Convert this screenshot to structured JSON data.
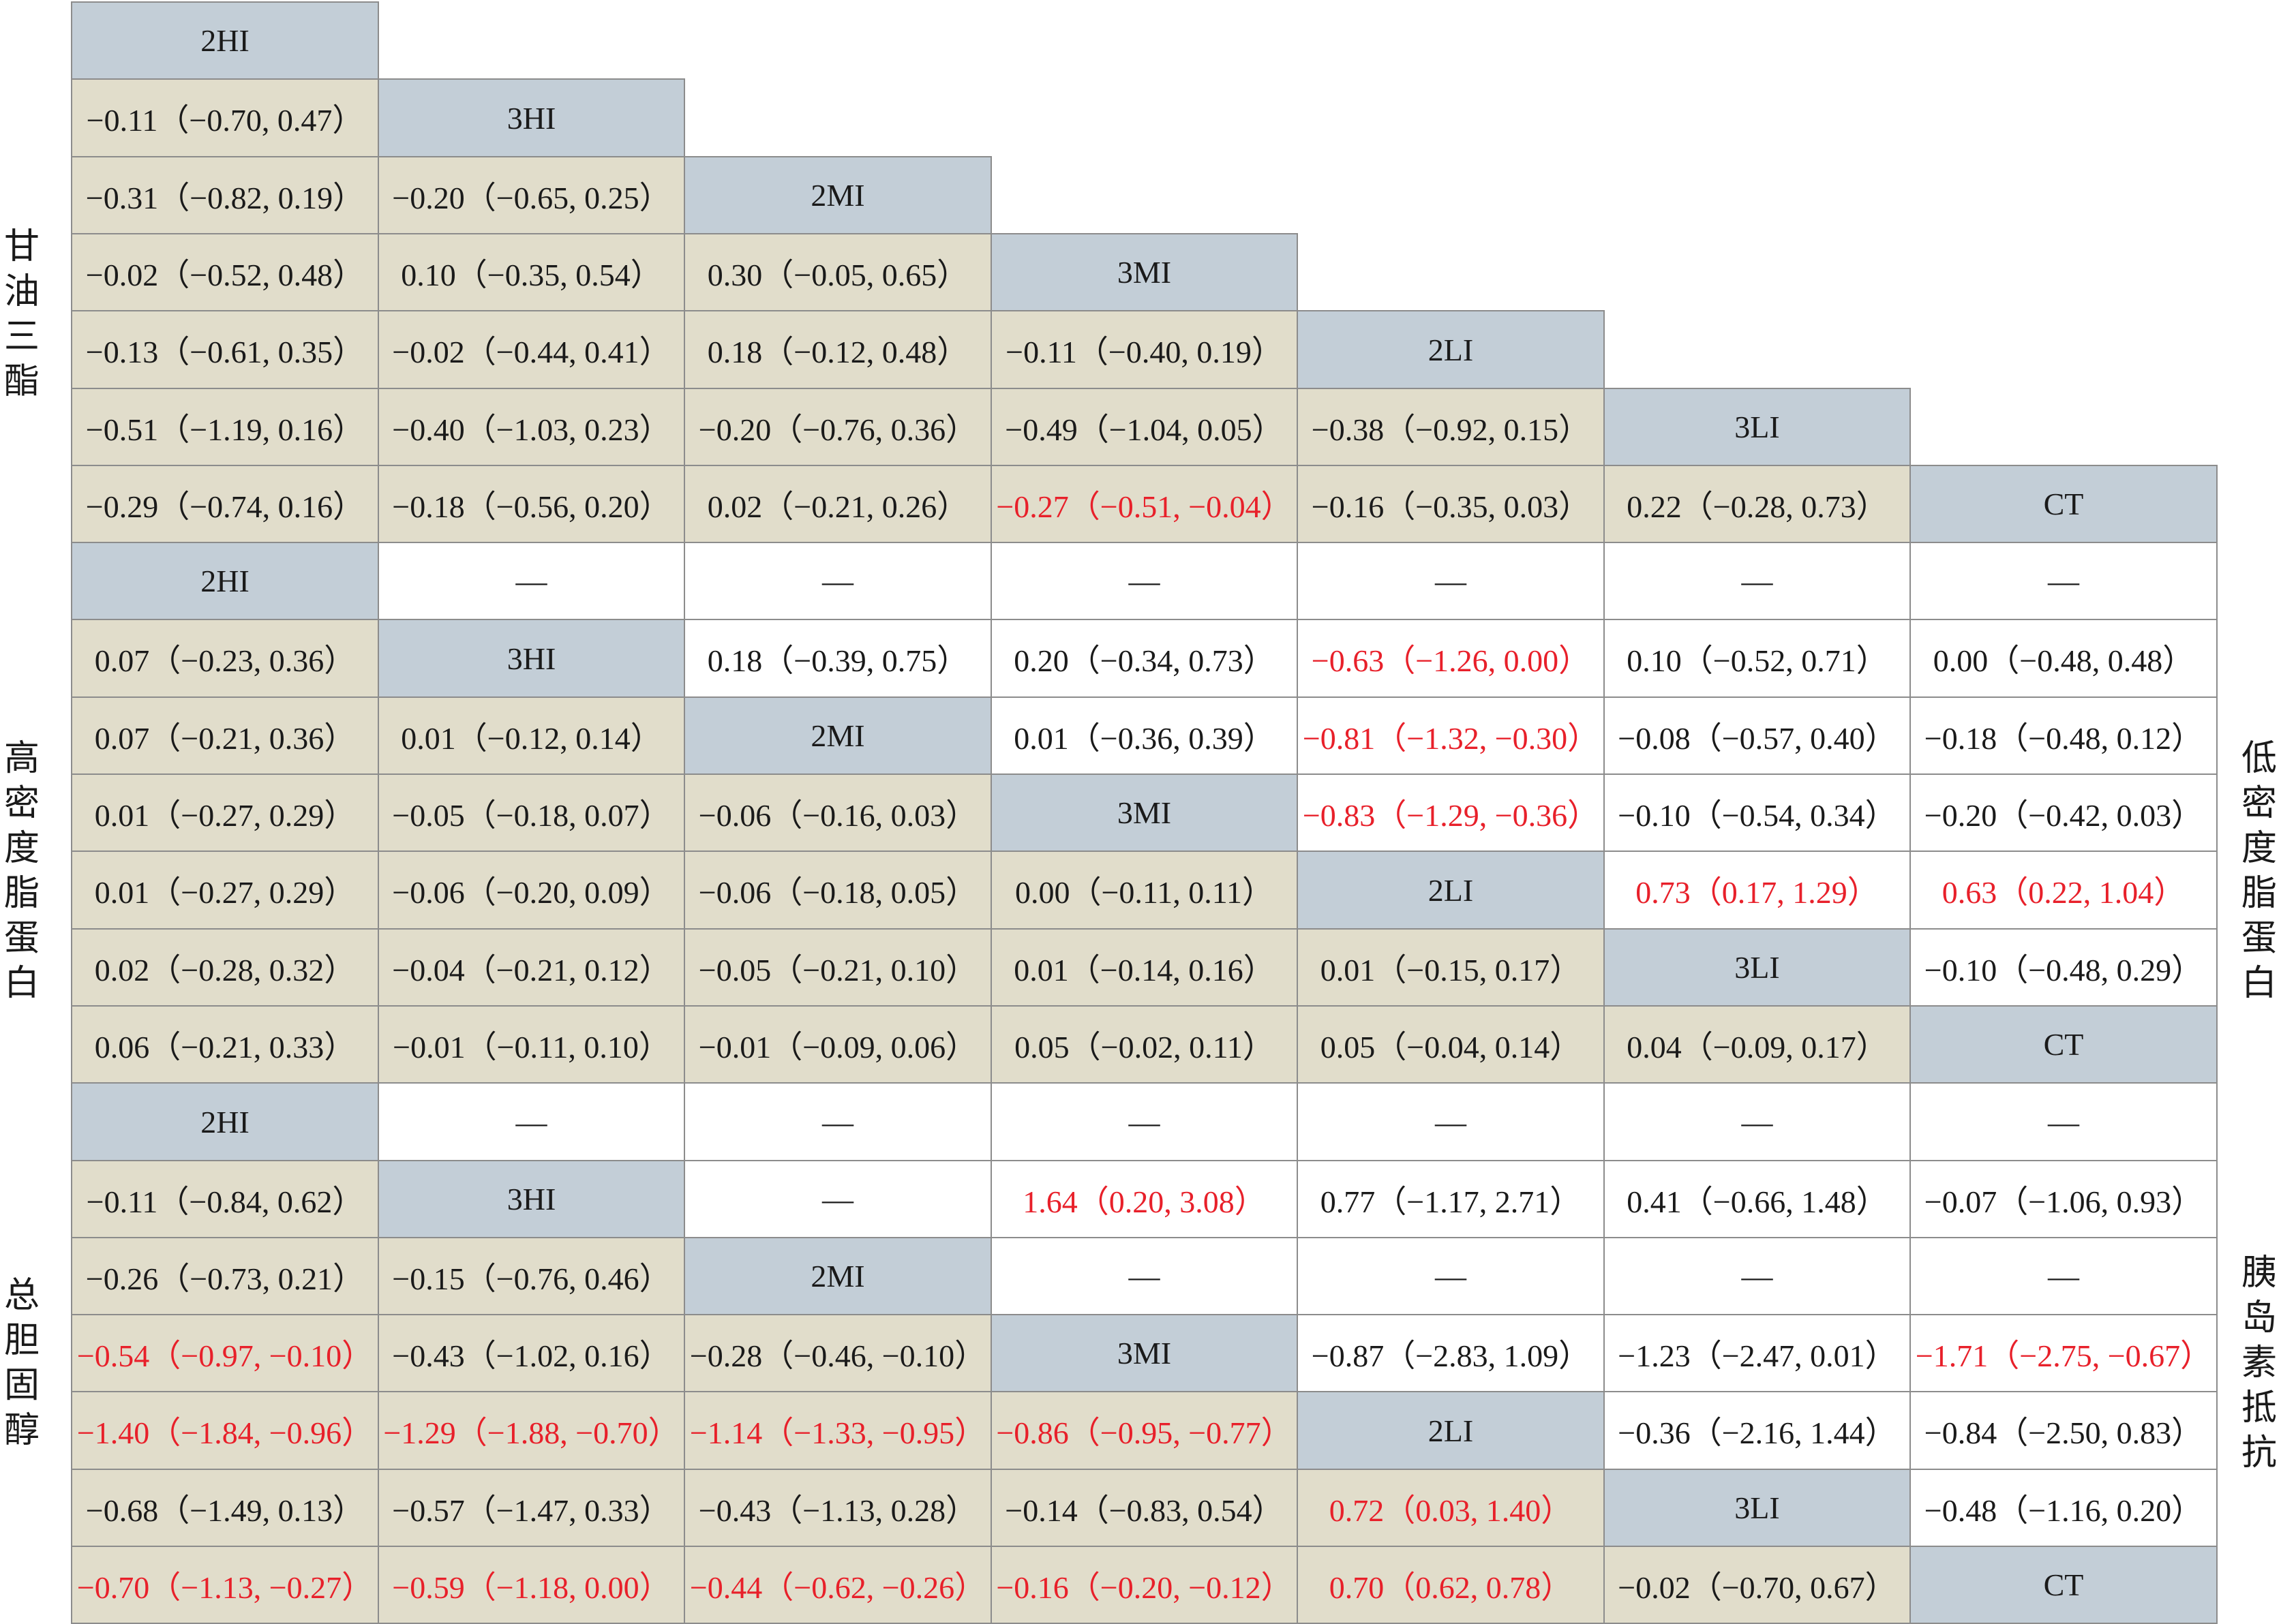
{
  "colors": {
    "label_fill": "#c3ced7",
    "lower_fill": "#e1ddcb",
    "upper_fill": "#ffffff",
    "border": "#8c8c8c",
    "text": "#1a1a1a",
    "significant_text": "#e8202a"
  },
  "side_labels": {
    "triglyceride": "甘油三酯",
    "hdl": "高密度脂蛋白",
    "ldl": "低密度脂蛋白",
    "total_cholesterol": "总胆固醇",
    "insulin_resistance": "胰岛素抵抗"
  },
  "blocks": [
    {
      "id": "triglyceride",
      "rows": [
        [
          {
            "t": "2HI",
            "k": "label"
          }
        ],
        [
          {
            "t": "−0.11（−0.70, 0.47）"
          },
          {
            "t": "3HI",
            "k": "label"
          }
        ],
        [
          {
            "t": "−0.31（−0.82, 0.19）"
          },
          {
            "t": "−0.20（−0.65, 0.25）"
          },
          {
            "t": "2MI",
            "k": "label"
          }
        ],
        [
          {
            "t": "−0.02（−0.52, 0.48）"
          },
          {
            "t": "0.10（−0.35, 0.54）"
          },
          {
            "t": "0.30（−0.05, 0.65）"
          },
          {
            "t": "3MI",
            "k": "label"
          }
        ],
        [
          {
            "t": "−0.13（−0.61, 0.35）"
          },
          {
            "t": "−0.02（−0.44, 0.41）"
          },
          {
            "t": "0.18（−0.12, 0.48）"
          },
          {
            "t": "−0.11（−0.40, 0.19）"
          },
          {
            "t": "2LI",
            "k": "label"
          }
        ],
        [
          {
            "t": "−0.51（−1.19, 0.16）"
          },
          {
            "t": "−0.40（−1.03, 0.23）"
          },
          {
            "t": "−0.20（−0.76, 0.36）"
          },
          {
            "t": "−0.49（−1.04, 0.05）"
          },
          {
            "t": "−0.38（−0.92, 0.15）"
          },
          {
            "t": "3LI",
            "k": "label"
          }
        ],
        [
          {
            "t": "−0.29（−0.74, 0.16）"
          },
          {
            "t": "−0.18（−0.56, 0.20）"
          },
          {
            "t": "0.02（−0.21, 0.26）"
          },
          {
            "t": "−0.27（−0.51, −0.04）",
            "s": true
          },
          {
            "t": "−0.16（−0.35, 0.03）"
          },
          {
            "t": "0.22（−0.28, 0.73）"
          },
          {
            "t": "CT",
            "k": "label"
          }
        ]
      ]
    },
    {
      "id": "hdl_ldl",
      "rows": [
        [
          {
            "t": "2HI",
            "k": "label"
          },
          {
            "t": "—"
          },
          {
            "t": "—"
          },
          {
            "t": "—"
          },
          {
            "t": "—"
          },
          {
            "t": "—"
          },
          {
            "t": "—"
          }
        ],
        [
          {
            "t": "0.07（−0.23, 0.36）"
          },
          {
            "t": "3HI",
            "k": "label"
          },
          {
            "t": "0.18（−0.39, 0.75）"
          },
          {
            "t": "0.20（−0.34, 0.73）"
          },
          {
            "t": "−0.63（−1.26, 0.00）",
            "s": true
          },
          {
            "t": "0.10（−0.52, 0.71）"
          },
          {
            "t": "0.00（−0.48, 0.48）"
          }
        ],
        [
          {
            "t": "0.07（−0.21, 0.36）"
          },
          {
            "t": "0.01（−0.12, 0.14）"
          },
          {
            "t": "2MI",
            "k": "label"
          },
          {
            "t": "0.01（−0.36, 0.39）"
          },
          {
            "t": "−0.81（−1.32, −0.30）",
            "s": true
          },
          {
            "t": "−0.08（−0.57, 0.40）"
          },
          {
            "t": "−0.18（−0.48, 0.12）"
          }
        ],
        [
          {
            "t": "0.01（−0.27, 0.29）"
          },
          {
            "t": "−0.05（−0.18, 0.07）"
          },
          {
            "t": "−0.06（−0.16, 0.03）"
          },
          {
            "t": "3MI",
            "k": "label"
          },
          {
            "t": "−0.83（−1.29, −0.36）",
            "s": true
          },
          {
            "t": "−0.10（−0.54, 0.34）"
          },
          {
            "t": "−0.20（−0.42, 0.03）"
          }
        ],
        [
          {
            "t": "0.01（−0.27, 0.29）"
          },
          {
            "t": "−0.06（−0.20, 0.09）"
          },
          {
            "t": "−0.06（−0.18, 0.05）"
          },
          {
            "t": "0.00（−0.11, 0.11）"
          },
          {
            "t": "2LI",
            "k": "label"
          },
          {
            "t": "0.73（0.17, 1.29）",
            "s": true
          },
          {
            "t": "0.63（0.22, 1.04）",
            "s": true
          }
        ],
        [
          {
            "t": "0.02（−0.28, 0.32）"
          },
          {
            "t": "−0.04（−0.21, 0.12）"
          },
          {
            "t": "−0.05（−0.21, 0.10）"
          },
          {
            "t": "0.01（−0.14, 0.16）"
          },
          {
            "t": "0.01（−0.15, 0.17）"
          },
          {
            "t": "3LI",
            "k": "label"
          },
          {
            "t": "−0.10（−0.48, 0.29）"
          }
        ],
        [
          {
            "t": "0.06（−0.21, 0.33）"
          },
          {
            "t": "−0.01（−0.11, 0.10）"
          },
          {
            "t": "−0.01（−0.09, 0.06）"
          },
          {
            "t": "0.05（−0.02, 0.11）"
          },
          {
            "t": "0.05（−0.04, 0.14）"
          },
          {
            "t": "0.04（−0.09, 0.17）"
          },
          {
            "t": "CT",
            "k": "label"
          }
        ]
      ]
    },
    {
      "id": "tc_ir",
      "rows": [
        [
          {
            "t": "2HI",
            "k": "label"
          },
          {
            "t": "—"
          },
          {
            "t": "—"
          },
          {
            "t": "—"
          },
          {
            "t": "—"
          },
          {
            "t": "—"
          },
          {
            "t": "—"
          }
        ],
        [
          {
            "t": "−0.11（−0.84, 0.62）"
          },
          {
            "t": "3HI",
            "k": "label"
          },
          {
            "t": "—"
          },
          {
            "t": "1.64（0.20, 3.08）",
            "s": true
          },
          {
            "t": "0.77（−1.17, 2.71）"
          },
          {
            "t": "0.41（−0.66, 1.48）"
          },
          {
            "t": "−0.07（−1.06, 0.93）"
          }
        ],
        [
          {
            "t": "−0.26（−0.73, 0.21）"
          },
          {
            "t": "−0.15（−0.76, 0.46）"
          },
          {
            "t": "2MI",
            "k": "label"
          },
          {
            "t": "—"
          },
          {
            "t": "—"
          },
          {
            "t": "—"
          },
          {
            "t": "—"
          }
        ],
        [
          {
            "t": "−0.54（−0.97, −0.10）",
            "s": true
          },
          {
            "t": "−0.43（−1.02, 0.16）"
          },
          {
            "t": "−0.28（−0.46, −0.10）"
          },
          {
            "t": "3MI",
            "k": "label"
          },
          {
            "t": "−0.87（−2.83, 1.09）"
          },
          {
            "t": "−1.23（−2.47, 0.01）"
          },
          {
            "t": "−1.71（−2.75, −0.67）",
            "s": true
          }
        ],
        [
          {
            "t": "−1.40（−1.84, −0.96）",
            "s": true
          },
          {
            "t": "−1.29（−1.88, −0.70）",
            "s": true
          },
          {
            "t": "−1.14（−1.33, −0.95）",
            "s": true
          },
          {
            "t": "−0.86（−0.95, −0.77）",
            "s": true
          },
          {
            "t": "2LI",
            "k": "label"
          },
          {
            "t": "−0.36（−2.16, 1.44）"
          },
          {
            "t": "−0.84（−2.50, 0.83）"
          }
        ],
        [
          {
            "t": "−0.68（−1.49, 0.13）"
          },
          {
            "t": "−0.57（−1.47, 0.33）"
          },
          {
            "t": "−0.43（−1.13, 0.28）"
          },
          {
            "t": "−0.14（−0.83, 0.54）"
          },
          {
            "t": "0.72（0.03, 1.40）",
            "s": true
          },
          {
            "t": "3LI",
            "k": "label"
          },
          {
            "t": "−0.48（−1.16, 0.20）"
          }
        ],
        [
          {
            "t": "−0.70（−1.13, −0.27）",
            "s": true
          },
          {
            "t": "−0.59（−1.18, 0.00）",
            "s": true
          },
          {
            "t": "−0.44（−0.62, −0.26）",
            "s": true
          },
          {
            "t": "−0.16（−0.20, −0.12）",
            "s": true
          },
          {
            "t": "0.70（0.62, 0.78）",
            "s": true
          },
          {
            "t": "−0.02（−0.70, 0.67）"
          },
          {
            "t": "CT",
            "k": "label"
          }
        ]
      ]
    }
  ]
}
